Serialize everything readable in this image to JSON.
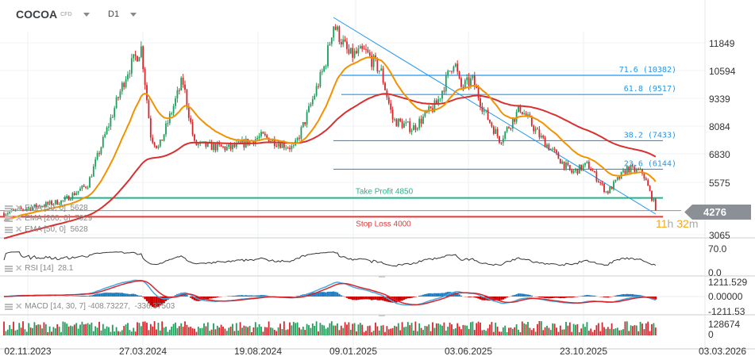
{
  "header": {
    "symbol": "COCOA",
    "instrument_type": "CFD",
    "timeframe": "D1"
  },
  "legends": {
    "ema_a": "EMA [50, 0]  5628",
    "ema_b": "EMA [200, 0]  7029",
    "ema_c": "EMA [50, 0]  5628",
    "rsi": "RSI [14]  28.1",
    "macd": "MACD [14, 30, 7] -408.73227,  -336.37503"
  },
  "annotations": {
    "take_profit": "Take Profit 4850",
    "stop_loss": "Stop Loss 4000",
    "fib_716": "71.6 (10382)",
    "fib_618": "61.8 (9517)",
    "fib_382": "38.2 (7433)",
    "fib_236": "23.6 (6144)",
    "price_tag": "4276",
    "timer": {
      "hours": "11",
      "h": "h",
      "minutes": "32",
      "m": "m"
    }
  },
  "axes": {
    "price_ticks": [
      "11849",
      "10594",
      "9339",
      "8084",
      "6830",
      "5575",
      "3065"
    ],
    "rsi_ticks": [
      "70.0",
      "0.0"
    ],
    "macd_ticks": [
      "1211.529",
      "0.00000",
      "-1211.53"
    ],
    "volume_ticks": [
      "128674",
      "0"
    ],
    "date_ticks": [
      "02.11.2023",
      "27.03.2024",
      "19.08.2024",
      "09.01.2025",
      "03.06.2025",
      "23.10.2025",
      "03.03.2026"
    ]
  },
  "colors": {
    "up": "#1e9e5a",
    "down": "#d7262b",
    "ema50": "#f39200",
    "ema200": "#d9302f",
    "fib": "#2196f3",
    "take_profit": "#1fb58a",
    "stop_loss": "#e53935",
    "timer": "#f5a623"
  },
  "chart_data": {
    "type": "line",
    "subtype": "candlestick",
    "title": "COCOA",
    "price_axis_ticks": [
      11849,
      10594,
      9339,
      8084,
      6830,
      5575,
      3065
    ],
    "close_keypoints": [
      [
        "2023-10-03",
        4170
      ],
      [
        "2023-12-17",
        4720
      ],
      [
        "2024-01-17",
        5450
      ],
      [
        "2024-02-11",
        7990
      ],
      [
        "2024-03-07",
        10540
      ],
      [
        "2024-03-25",
        11630
      ],
      [
        "2024-04-06",
        7630
      ],
      [
        "2024-04-16",
        7080
      ],
      [
        "2024-05-16",
        10175
      ],
      [
        "2024-05-31",
        7270
      ],
      [
        "2024-07-15",
        7080
      ],
      [
        "2024-08-25",
        7630
      ],
      [
        "2024-10-12",
        7080
      ],
      [
        "2024-10-29",
        8360
      ],
      [
        "2024-11-28",
        10900
      ],
      [
        "2024-12-10",
        12700
      ],
      [
        "2025-01-03",
        11270
      ],
      [
        "2025-01-24",
        11450
      ],
      [
        "2025-02-13",
        10540
      ],
      [
        "2025-02-28",
        8360
      ],
      [
        "2025-03-25",
        7990
      ],
      [
        "2025-04-24",
        9080
      ],
      [
        "2025-05-16",
        11090
      ],
      [
        "2025-05-24",
        9810
      ],
      [
        "2025-06-08",
        10175
      ],
      [
        "2025-06-23",
        8720
      ],
      [
        "2025-07-12",
        7450
      ],
      [
        "2025-08-06",
        8910
      ],
      [
        "2025-08-30",
        7630
      ],
      [
        "2025-10-08",
        5990
      ],
      [
        "2025-10-27",
        6360
      ],
      [
        "2025-11-14",
        5080
      ],
      [
        "2025-12-03",
        6180
      ],
      [
        "2025-12-18",
        5990
      ],
      [
        "2025-12-26",
        4900
      ],
      [
        "2026-01-01",
        4276
      ]
    ],
    "last_price": 4276,
    "indicators": {
      "ema50_last": 5628,
      "ema200_last": 7029,
      "rsi14_last": 28.1,
      "macd_last": -408.73227,
      "signal_last": -336.37503
    },
    "horizontal_levels": {
      "take_profit": 4850,
      "stop_loss": 4000
    },
    "fibonacci": [
      {
        "level": 71.6,
        "price": 10382
      },
      {
        "level": 61.8,
        "price": 9517
      },
      {
        "level": 38.2,
        "price": 7433
      },
      {
        "level": 23.6,
        "price": 6144
      }
    ],
    "rsi_range": [
      0,
      70
    ],
    "macd_range": [
      -1211.53,
      1211.529
    ],
    "volume_max": 128674,
    "grid": true
  }
}
